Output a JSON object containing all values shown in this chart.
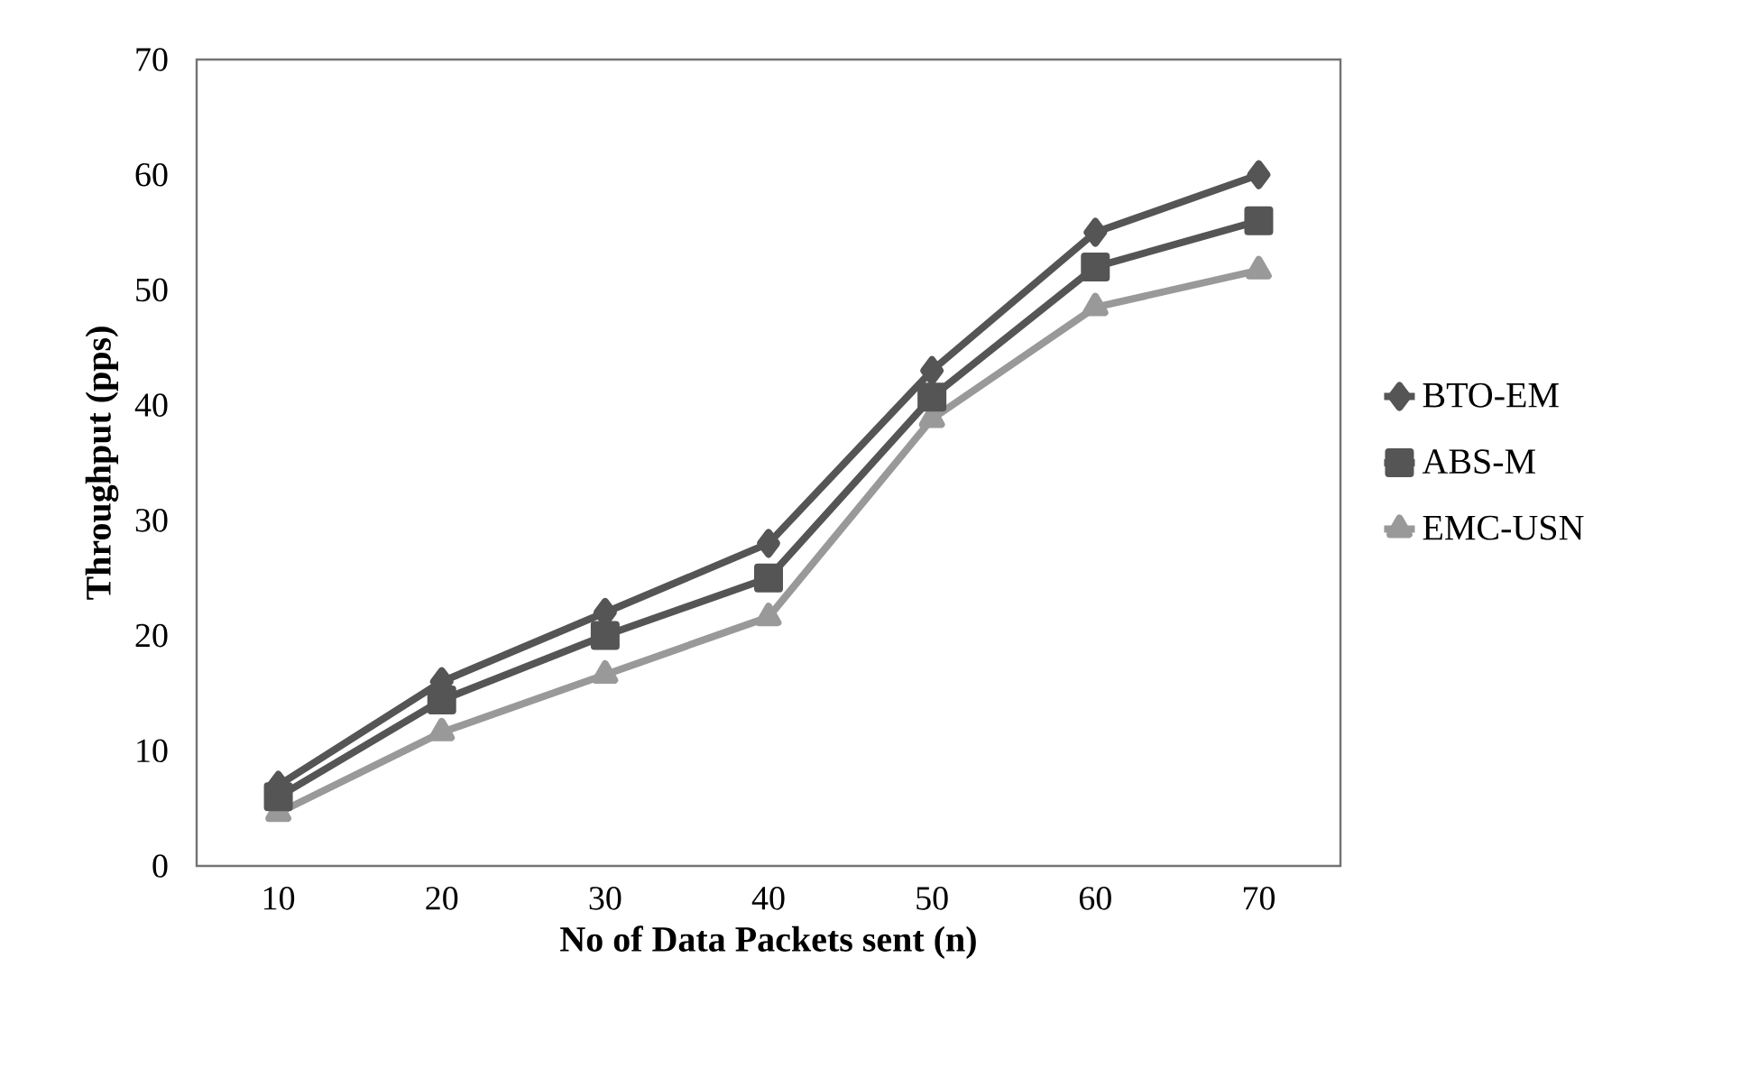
{
  "chart_data": {
    "type": "line",
    "xlabel": "No of Data Packets sent (n)",
    "ylabel": "Throughput  (pps)",
    "categories": [
      "10",
      "20",
      "30",
      "40",
      "50",
      "60",
      "70"
    ],
    "ylim": [
      0,
      70
    ],
    "yticks": [
      0,
      10,
      20,
      30,
      40,
      50,
      60,
      70
    ],
    "legend": "right",
    "grid": false,
    "line_style": "solid",
    "series": [
      {
        "name": "BTO-EM",
        "color": "#555555",
        "marker": "diamond",
        "values": [
          7,
          16,
          22,
          28,
          43,
          55,
          60
        ]
      },
      {
        "name": "ABS-M",
        "color": "#555555",
        "marker": "square",
        "values": [
          6,
          14.4,
          20,
          25,
          40.7,
          52,
          56
        ]
      },
      {
        "name": "EMC-USN",
        "color": "#999999",
        "marker": "triangle",
        "values": [
          4.6,
          11.6,
          16.6,
          21.6,
          38.8,
          48.5,
          51.7
        ]
      }
    ]
  }
}
